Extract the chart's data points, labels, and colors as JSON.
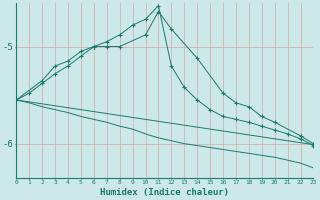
{
  "xlabel": "Humidex (Indice chaleur)",
  "background_color": "#cce8e8",
  "line_color": "#1a7a6e",
  "vgrid_color": "#d4aaaa",
  "hgrid_color": "#d4aaaa",
  "xlim": [
    0,
    23
  ],
  "ylim": [
    -6.35,
    -4.55
  ],
  "yticks": [
    -6.0,
    -5.0
  ],
  "xticks": [
    0,
    1,
    2,
    3,
    4,
    5,
    6,
    7,
    8,
    9,
    10,
    11,
    12,
    13,
    14,
    15,
    16,
    17,
    18,
    19,
    20,
    21,
    22,
    23
  ],
  "series": [
    {
      "x": [
        0,
        1,
        2,
        3,
        4,
        5,
        6,
        7,
        8,
        9,
        10,
        11,
        12,
        13,
        14,
        15,
        16,
        17,
        18,
        19,
        20,
        21,
        22,
        23
      ],
      "y": [
        -5.55,
        -5.48,
        -5.38,
        -5.28,
        -5.2,
        -5.1,
        -5.0,
        -4.95,
        -4.88,
        -4.78,
        -4.72,
        -4.58,
        -5.2,
        -5.42,
        -5.55,
        -5.65,
        -5.72,
        -5.75,
        -5.78,
        -5.82,
        -5.86,
        -5.9,
        -5.95,
        -6.02
      ],
      "has_markers": true
    },
    {
      "x": [
        0,
        2,
        3,
        4,
        5,
        6,
        7,
        8,
        10,
        11,
        12,
        14,
        16,
        17,
        18,
        19,
        20,
        22,
        23
      ],
      "y": [
        -5.55,
        -5.35,
        -5.2,
        -5.15,
        -5.05,
        -5.0,
        -5.0,
        -5.0,
        -4.88,
        -4.64,
        -4.82,
        -5.12,
        -5.48,
        -5.58,
        -5.62,
        -5.72,
        -5.78,
        -5.92,
        -6.0
      ],
      "has_markers": true
    },
    {
      "x": [
        0,
        1,
        2,
        3,
        4,
        5,
        6,
        7,
        8,
        9,
        10,
        11,
        12,
        13,
        14,
        15,
        16,
        17,
        18,
        19,
        20,
        21,
        22,
        23
      ],
      "y": [
        -5.55,
        -5.57,
        -5.59,
        -5.61,
        -5.63,
        -5.65,
        -5.67,
        -5.69,
        -5.71,
        -5.73,
        -5.75,
        -5.77,
        -5.79,
        -5.81,
        -5.83,
        -5.85,
        -5.87,
        -5.89,
        -5.91,
        -5.93,
        -5.95,
        -5.97,
        -5.99,
        -6.01
      ],
      "has_markers": false
    },
    {
      "x": [
        0,
        1,
        2,
        3,
        4,
        5,
        6,
        7,
        8,
        9,
        10,
        11,
        12,
        13,
        14,
        15,
        16,
        17,
        18,
        19,
        20,
        21,
        22,
        23
      ],
      "y": [
        -5.55,
        -5.58,
        -5.62,
        -5.65,
        -5.68,
        -5.72,
        -5.75,
        -5.78,
        -5.82,
        -5.85,
        -5.9,
        -5.94,
        -5.97,
        -6.0,
        -6.02,
        -6.04,
        -6.06,
        -6.08,
        -6.1,
        -6.12,
        -6.14,
        -6.17,
        -6.2,
        -6.25
      ],
      "has_markers": false
    }
  ]
}
